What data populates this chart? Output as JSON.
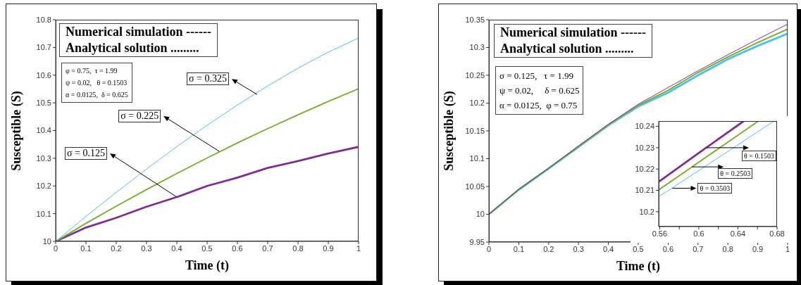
{
  "chart_data": [
    {
      "type": "line",
      "xlabel": "Time (t)",
      "ylabel": "Susceptible (S)",
      "x": [
        0,
        0.1,
        0.2,
        0.3,
        0.4,
        0.5,
        0.6,
        0.7,
        0.8,
        0.9,
        1
      ],
      "xlim": [
        0,
        1
      ],
      "xticks": [
        0,
        0.1,
        0.2,
        0.3,
        0.4,
        0.5,
        0.6,
        0.7,
        0.8,
        0.9,
        1
      ],
      "ylim": [
        10,
        10.8
      ],
      "yticks": [
        10,
        10.1,
        10.2,
        10.3,
        10.4,
        10.5,
        10.6,
        10.7,
        10.8
      ],
      "series": [
        {
          "color": "#7e2f8e",
          "values": [
            10,
            10.05,
            10.085,
            10.125,
            10.16,
            10.2,
            10.23,
            10.265,
            10.29,
            10.317,
            10.341
          ]
        },
        {
          "color": "#77ac30",
          "values": [
            10,
            10.065,
            10.127,
            10.187,
            10.245,
            10.301,
            10.355,
            10.407,
            10.457,
            10.505,
            10.551
          ]
        },
        {
          "color": "#4dbeee",
          "values": [
            10,
            10.09,
            10.177,
            10.261,
            10.342,
            10.419,
            10.492,
            10.561,
            10.625,
            10.683,
            10.734
          ]
        }
      ],
      "annotations": [
        "Numerical simulation ------",
        "Analytical solution .........",
        "φ = 0.75,  τ = 1.99",
        "ψ = 0.02,   θ = 0.1503",
        "α = 0.0125,  δ = 0.625",
        {
          "text": "σ = 0.325",
          "x": 0.665,
          "y": 10.53
        },
        {
          "text": "σ = 0.225",
          "x": 0.54,
          "y": 10.325
        },
        {
          "text": "σ = 0.125",
          "x": 0.4,
          "y": 10.16
        }
      ]
    },
    {
      "type": "line",
      "xlabel": "Time (t)",
      "ylabel": "Susceptible (S)",
      "x": [
        0,
        0.1,
        0.2,
        0.3,
        0.4,
        0.5,
        0.6,
        0.7,
        0.8,
        0.9,
        1
      ],
      "xlim": [
        0,
        1
      ],
      "xticks": [
        0,
        0.1,
        0.2,
        0.3,
        0.4,
        0.5,
        0.6,
        0.7,
        0.8,
        0.9,
        1
      ],
      "ylim": [
        9.95,
        10.35
      ],
      "yticks": [
        9.95,
        10,
        10.05,
        10.1,
        10.15,
        10.2,
        10.25,
        10.3,
        10.35
      ],
      "series": [
        {
          "color": "#4dbeee",
          "values": [
            10,
            10.044,
            10.082,
            10.121,
            10.16,
            10.194,
            10.219,
            10.25,
            10.279,
            10.303,
            10.325
          ]
        },
        {
          "color": "#77ac30",
          "values": [
            10,
            10.045,
            10.083,
            10.122,
            10.161,
            10.196,
            10.223,
            10.255,
            10.283,
            10.309,
            10.333
          ]
        },
        {
          "color": "#7e2f8e",
          "values": [
            10,
            10.045,
            10.083,
            10.123,
            10.162,
            10.198,
            10.228,
            10.258,
            10.287,
            10.315,
            10.342
          ]
        }
      ],
      "annotations": [
        "Numerical simulation ------",
        "Analytical solution .........",
        "σ = 0.125,   τ = 1.99",
        "ψ = 0.02,     δ = 0.625",
        "α = 0.0125,  φ = 0.75"
      ]
    },
    {
      "type": "line",
      "xlim": [
        0.559,
        0.68
      ],
      "xticks": [
        0.56,
        {
          "value": 0.58,
          "label": null
        },
        0.6,
        {
          "value": 0.62,
          "label": null
        },
        0.64,
        {
          "value": 0.66,
          "label": null
        },
        0.68
      ],
      "ylim": [
        10.193,
        10.2425
      ],
      "yticks": [
        10.2,
        10.21,
        10.22,
        10.23,
        10.24
      ],
      "series": [
        {
          "color": "#7e2f8e",
          "x": [
            0.559,
            0.6,
            0.646
          ],
          "values": [
            10.214,
            10.2275,
            10.2425
          ]
        },
        {
          "color": "#77ac30",
          "x": [
            0.559,
            0.6,
            0.661
          ],
          "values": [
            10.2102,
            10.2232,
            10.2425
          ]
        },
        {
          "color": "#4dbeee",
          "x": [
            0.559,
            0.6,
            0.677
          ],
          "values": [
            10.207,
            10.2193,
            10.2425
          ]
        }
      ],
      "annotations": [
        {
          "text": "θ = 0.1503",
          "x": 0.608,
          "y": 10.23
        },
        {
          "text": "θ = 0.2503",
          "x": 0.593,
          "y": 10.221
        },
        {
          "text": "θ = 0.3503",
          "x": 0.573,
          "y": 10.211
        }
      ]
    }
  ]
}
